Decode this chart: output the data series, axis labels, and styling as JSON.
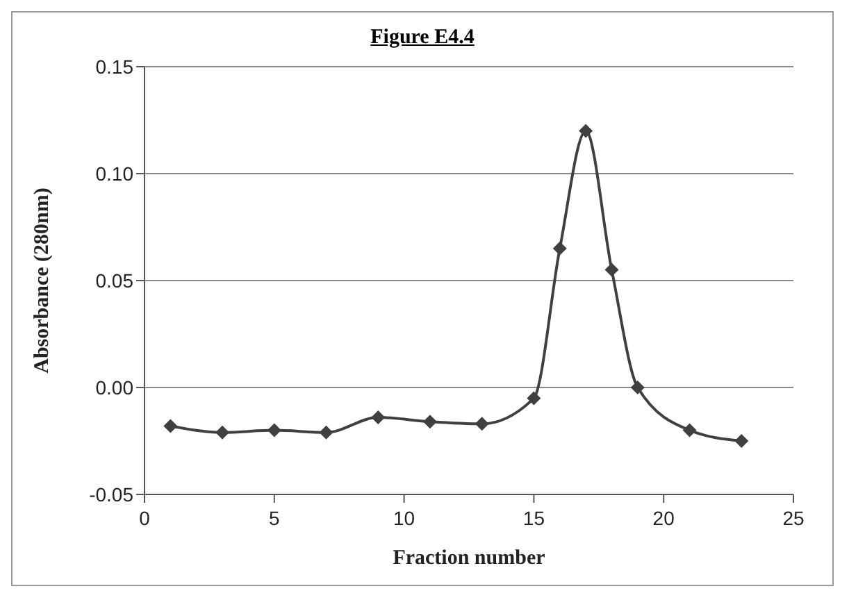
{
  "chart_data": {
    "type": "line",
    "title": "Figure E4.4",
    "xlabel": "Fraction number",
    "ylabel": "Absorbance (280nm)",
    "x": [
      1,
      3,
      5,
      7,
      9,
      11,
      13,
      15,
      16,
      17,
      18,
      19,
      21,
      23
    ],
    "series": [
      {
        "color": "#404040",
        "values": [
          -0.018,
          -0.021,
          -0.02,
          -0.021,
          -0.014,
          -0.016,
          -0.017,
          -0.005,
          0.065,
          0.12,
          0.055,
          0.0,
          -0.02,
          -0.025
        ]
      }
    ],
    "xlim": [
      0,
      25
    ],
    "xticks": [
      0,
      5,
      10,
      15,
      20,
      25
    ],
    "ylim": [
      -0.05,
      0.15
    ],
    "yticks": [
      {
        "value": -0.05,
        "label": "-0.05"
      },
      {
        "value": 0,
        "label": "0.00"
      },
      {
        "value": 0.05,
        "label": "0.05"
      },
      {
        "value": 0.1,
        "label": "0.10"
      },
      {
        "value": 0.15,
        "label": "0.15"
      }
    ],
    "grid": "y",
    "marker": "diamond",
    "line_style": "solid",
    "legend": false
  }
}
